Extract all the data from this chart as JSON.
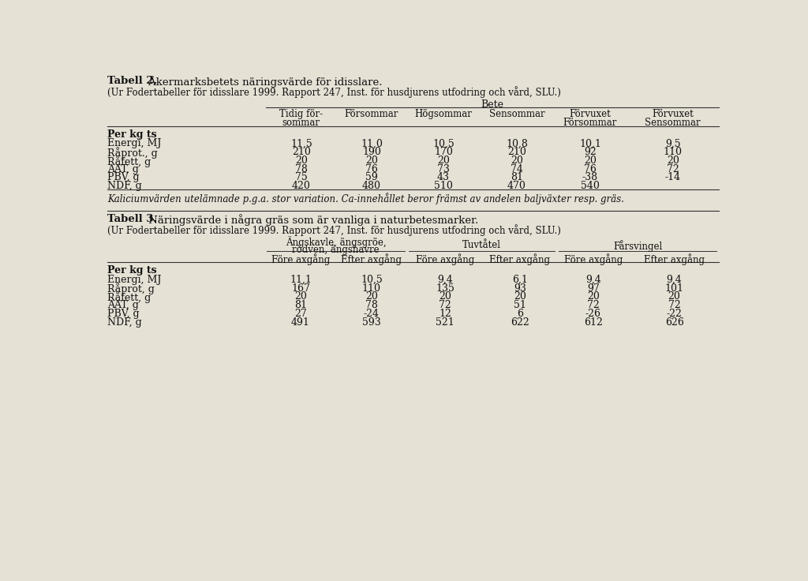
{
  "bg_color": "#e5e1d5",
  "table1": {
    "title_bold": "Tabell 2.",
    "title_rest": " Åkermarksbetets näringsvärde för idisslare.",
    "subtitle": "(Ur Fodertabeller för idisslare 1999. Rapport 247, Inst. för husdjurens utfodring och vård, SLU.)",
    "group_header": "Bete",
    "col_headers_line1": [
      "Tidig för-",
      "Försommar",
      "Högsommar",
      "Sensommar",
      "Förvuxet",
      "Förvuxet"
    ],
    "col_headers_line2": [
      "sommar",
      "",
      "",
      "",
      "Försommar",
      "Sensommar"
    ],
    "row_header_bold": "Per kg ts",
    "rows": [
      [
        "Energi, MJ",
        "11,5",
        "11,0",
        "10,5",
        "10,8",
        "10,1",
        "9,5"
      ],
      [
        "Råprot., g",
        "210",
        "190",
        "170",
        "210",
        "92",
        "110"
      ],
      [
        "Råfett, g",
        "20",
        "20",
        "20",
        "20",
        "20",
        "20"
      ],
      [
        "AAT, g",
        "78",
        "76",
        "73",
        "74",
        "76",
        "72"
      ],
      [
        "PBV, g",
        "75",
        "59",
        "43",
        "81",
        "-38",
        "-14"
      ],
      [
        "NDF, g",
        "420",
        "480",
        "510",
        "470",
        "540",
        ""
      ]
    ],
    "footnote": "Kaliciumvärden utelämnade p.g.a. stor variation. Ca-innehållet beror främst av andelen baljväxter resp. gräs."
  },
  "table2": {
    "title_bold": "Tabell 3.",
    "title_rest": " Näringsvärde i några gräs som är vanliga i naturbetesmarker.",
    "subtitle": "(Ur Fodertabeller för idisslare 1999. Rapport 247, Inst. för husdjurens utfodring och vård, SLU.)",
    "group_header_line1": "Ängskavle, ängsgröe,",
    "group_header_line2": "rödven, ängshavre",
    "group_header2": "Tuvtåtel",
    "group_header3": "Fårsvingel",
    "col_headers": [
      "Före axgång",
      "Efter axgång",
      "Före axgång",
      "Efter axgång",
      "Före axgång",
      "Efter axgång"
    ],
    "row_header_bold": "Per kg ts",
    "rows": [
      [
        "Energi, MJ",
        "11,1",
        "10,5",
        "9,4",
        "6,1",
        "9,4",
        "9,4"
      ],
      [
        "Råprot, g",
        "167",
        "110",
        "135",
        "93",
        "97",
        "101"
      ],
      [
        "Råfett, g",
        "20",
        "20",
        "20",
        "20",
        "20",
        "20"
      ],
      [
        "AAT, g",
        "81",
        "78",
        "72",
        "51",
        "72",
        "72"
      ],
      [
        "PBV, g",
        "27",
        "-24",
        "12",
        "6",
        "-26",
        "-22"
      ],
      [
        "NDF, g",
        "491",
        "593",
        "521",
        "622",
        "612",
        "626"
      ]
    ]
  }
}
